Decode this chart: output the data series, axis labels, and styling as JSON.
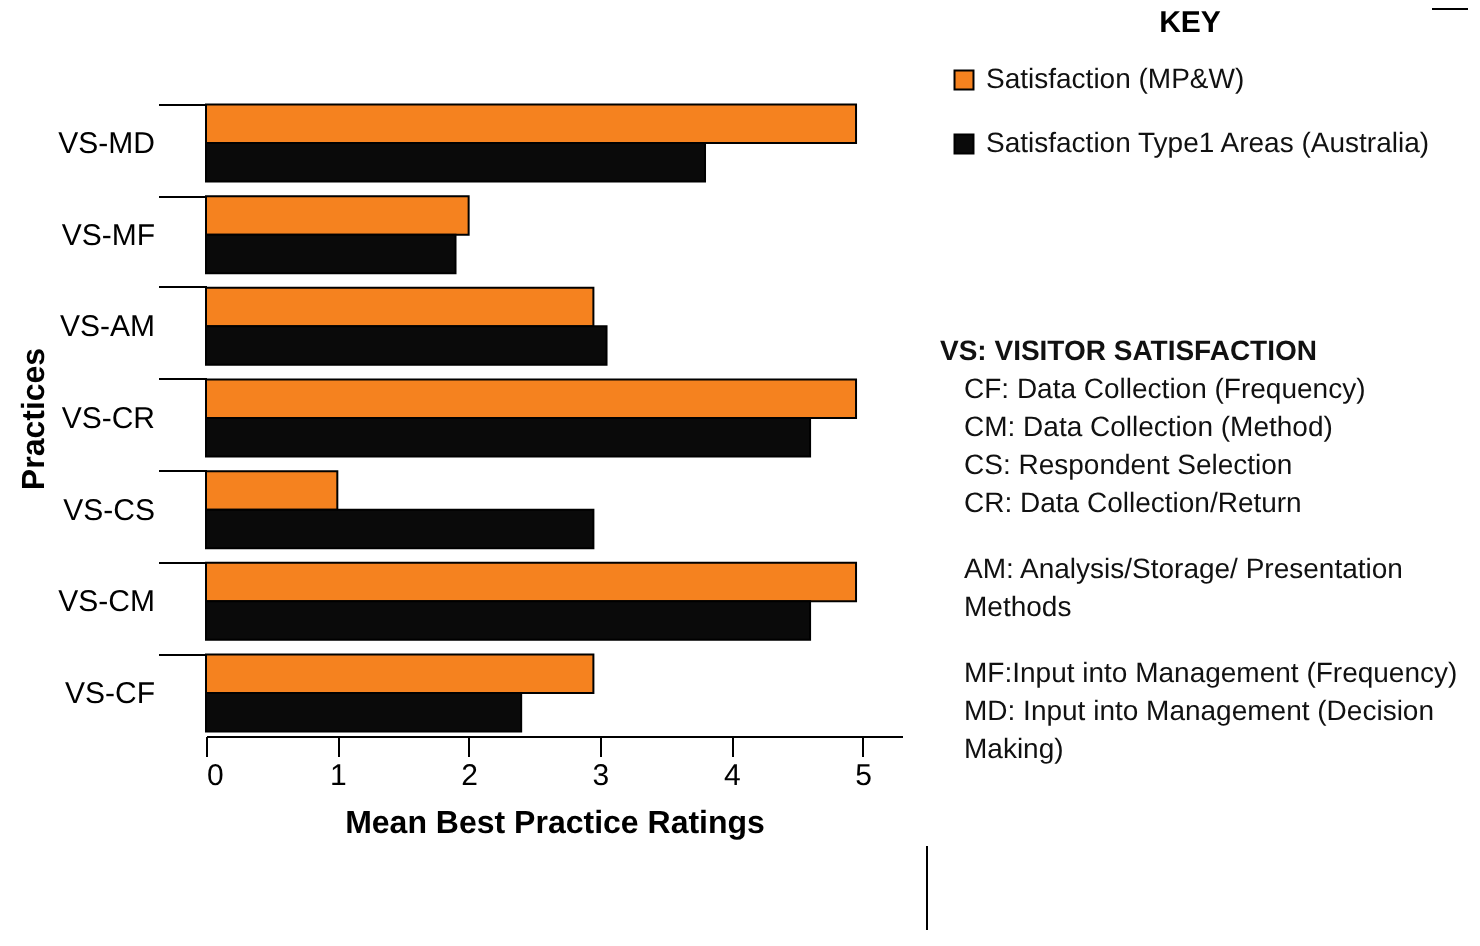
{
  "chart_data": {
    "type": "bar",
    "orientation": "horizontal",
    "xlabel": "Mean Best Practice Ratings",
    "ylabel": "Practices",
    "legend_title": "KEY",
    "legend": "right",
    "categories": [
      "VS-MD",
      "VS-MF",
      "VS-AM",
      "VS-CR",
      "VS-CS",
      "VS-CM",
      "VS-CF"
    ],
    "series": [
      {
        "name": "Satisfaction (MP&W)",
        "color": "#f5821f",
        "values": [
          4.95,
          2.0,
          2.95,
          4.95,
          1.0,
          4.95,
          2.95
        ]
      },
      {
        "name": "Satisfaction Type1 Areas (Australia)",
        "color": "#0a0a0a",
        "values": [
          3.8,
          1.9,
          3.05,
          4.6,
          2.95,
          4.6,
          2.4
        ]
      }
    ],
    "xlim": [
      0,
      5.3
    ],
    "xticks": [
      0,
      1,
      2,
      3,
      4,
      5
    ],
    "grid": false,
    "annotations": [
      "VS: VISITOR SATISFACTION",
      "CF: Data Collection (Frequency)",
      "CM: Data Collection (Method)",
      "CS: Respondent Selection",
      "CR: Data Collection/Return",
      "AM: Analysis/Storage/ Presentation Methods",
      "MF:Input into Management (Frequency)",
      "MD: Input into Management (Decision Making)"
    ]
  }
}
